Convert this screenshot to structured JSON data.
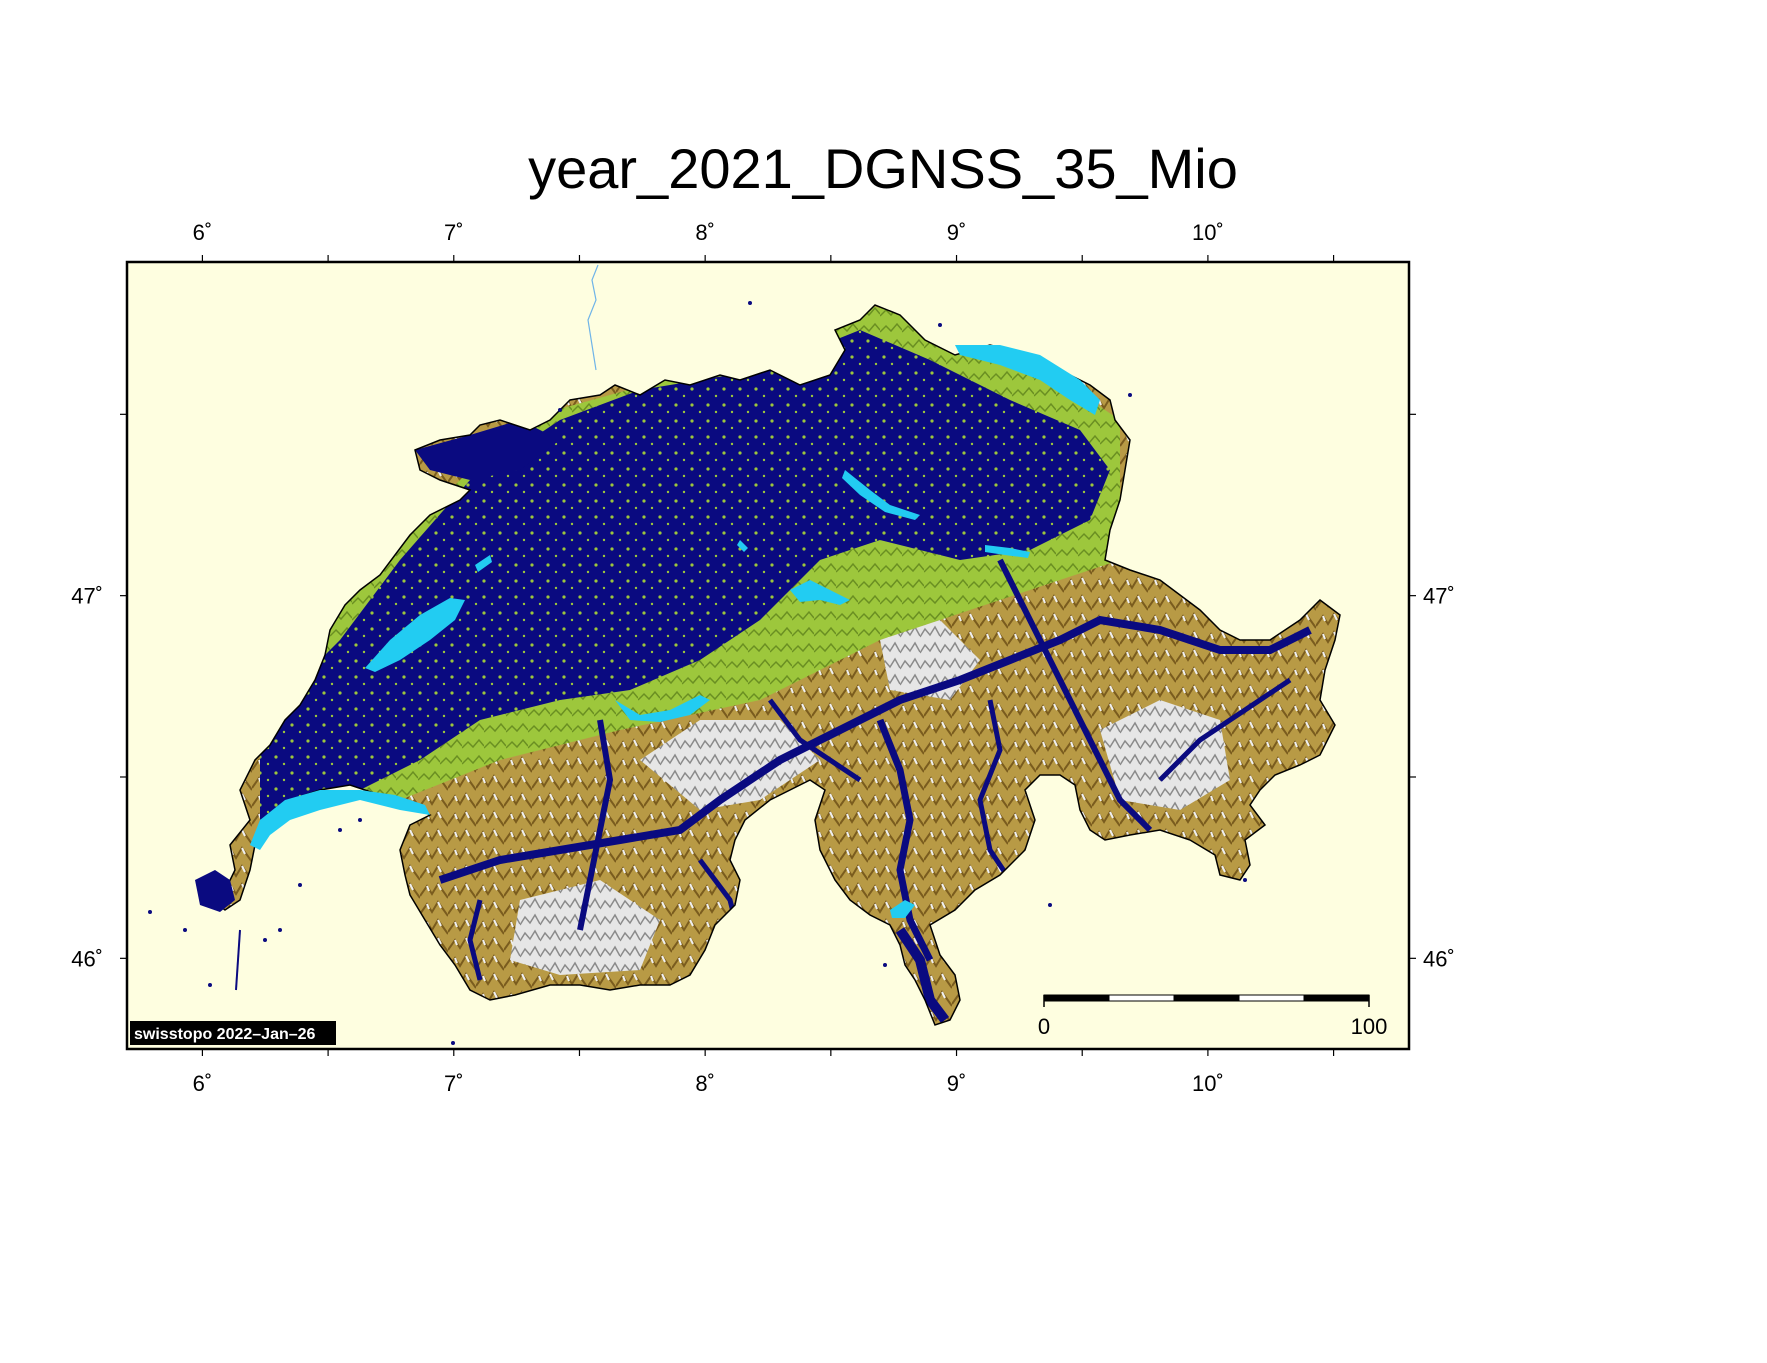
{
  "title": "year_2021_DGNSS_35_Mio",
  "map": {
    "region": "Switzerland",
    "projection": "geographic",
    "lon_range": [
      5.7,
      10.8
    ],
    "lat_range": [
      45.75,
      47.92
    ],
    "lon_ticks": [
      {
        "value": 6,
        "label": "6˚"
      },
      {
        "value": 7,
        "label": "7˚"
      },
      {
        "value": 8,
        "label": "8˚"
      },
      {
        "value": 9,
        "label": "9˚"
      },
      {
        "value": 10,
        "label": "10˚"
      }
    ],
    "lat_ticks": [
      {
        "value": 46,
        "label": "46˚"
      },
      {
        "value": 47,
        "label": "47˚"
      }
    ],
    "minor_tick_interval_deg": 0.5,
    "colors": {
      "background": "#fefee0",
      "lowland": "#9dc73c",
      "highland": "#b89a45",
      "alpine": "#e8e8e8",
      "coverage": "#0a0a80",
      "lakes": "#22ccf2",
      "frame": "#000000"
    }
  },
  "scale_bar": {
    "start_label": "0",
    "end_label": "100",
    "segments": 5
  },
  "credit": "swisstopo 2022–Jan–26"
}
